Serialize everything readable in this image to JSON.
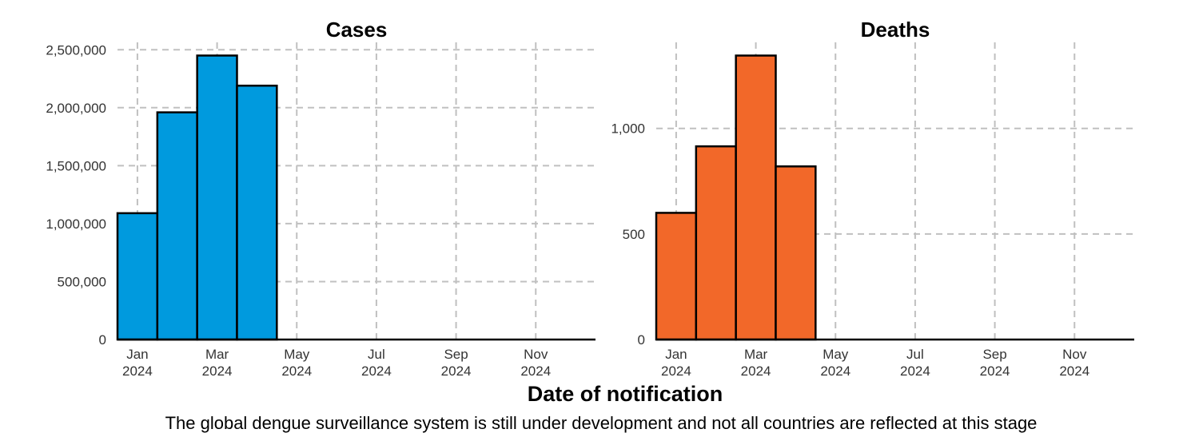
{
  "figure": {
    "xlabel": "Date of notification",
    "caption": "The global dengue surveillance system is still under development and not all countries are reflected at this stage"
  },
  "chart_data": [
    {
      "type": "bar",
      "title": "Cases",
      "categories": [
        "2024-01",
        "2024-02",
        "2024-03",
        "2024-04"
      ],
      "values": [
        1090000,
        1960000,
        2450000,
        2190000
      ],
      "color": "#009ADE",
      "xlim": [
        "2024-01",
        "2024-12"
      ],
      "x_ticks": [
        {
          "month": "2024-01",
          "label1": "Jan",
          "label2": "2024"
        },
        {
          "month": "2024-03",
          "label1": "Mar",
          "label2": "2024"
        },
        {
          "month": "2024-05",
          "label1": "May",
          "label2": "2024"
        },
        {
          "month": "2024-07",
          "label1": "Jul",
          "label2": "2024"
        },
        {
          "month": "2024-09",
          "label1": "Sep",
          "label2": "2024"
        },
        {
          "month": "2024-11",
          "label1": "Nov",
          "label2": "2024"
        }
      ],
      "y_ticks": [
        {
          "value": 0,
          "label": "0"
        },
        {
          "value": 500000,
          "label": "500,000"
        },
        {
          "value": 1000000,
          "label": "1,000,000"
        },
        {
          "value": 1500000,
          "label": "1,500,000"
        },
        {
          "value": 2000000,
          "label": "2,000,000"
        },
        {
          "value": 2500000,
          "label": "2,500,000"
        }
      ],
      "ylim": [
        0,
        2550000
      ],
      "grid": true
    },
    {
      "type": "bar",
      "title": "Deaths",
      "categories": [
        "2024-01",
        "2024-02",
        "2024-03",
        "2024-04"
      ],
      "values": [
        600,
        915,
        1345,
        820
      ],
      "color": "#F26829",
      "xlim": [
        "2024-01",
        "2024-12"
      ],
      "x_ticks": [
        {
          "month": "2024-01",
          "label1": "Jan",
          "label2": "2024"
        },
        {
          "month": "2024-03",
          "label1": "Mar",
          "label2": "2024"
        },
        {
          "month": "2024-05",
          "label1": "May",
          "label2": "2024"
        },
        {
          "month": "2024-07",
          "label1": "Jul",
          "label2": "2024"
        },
        {
          "month": "2024-09",
          "label1": "Sep",
          "label2": "2024"
        },
        {
          "month": "2024-11",
          "label1": "Nov",
          "label2": "2024"
        }
      ],
      "y_ticks": [
        {
          "value": 0,
          "label": "0"
        },
        {
          "value": 500,
          "label": "500"
        },
        {
          "value": 1000,
          "label": "1,000"
        }
      ],
      "ylim": [
        0,
        1400
      ],
      "grid": true
    }
  ]
}
